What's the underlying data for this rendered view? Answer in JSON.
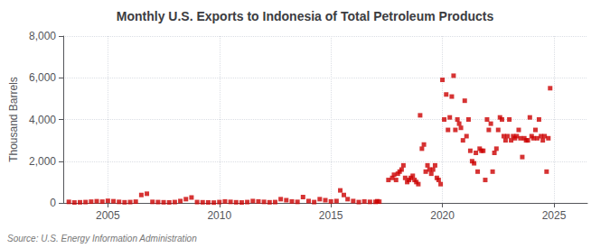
{
  "chart_data": {
    "type": "scatter",
    "title": "Monthly U.S. Exports to Indonesia of Total Petroleum Products",
    "ylabel": "Thousand Barrels",
    "source": "Source: U.S. Energy Information Administration",
    "color": "#cc0000",
    "marker": "square",
    "grid": true,
    "xlim": [
      2003.0,
      2026.5
    ],
    "xticks": [
      2005,
      2010,
      2015,
      2020,
      2025
    ],
    "ylim": [
      0,
      8000
    ],
    "yticks": [
      0,
      {
        "value": 2000,
        "label": "2,000"
      },
      {
        "value": 4000,
        "label": "4,000"
      },
      {
        "value": 6000,
        "label": "6,000"
      },
      {
        "value": 8000,
        "label": "8,000"
      }
    ],
    "x": [
      2003.25,
      2003.5,
      2003.75,
      2004.0,
      2004.25,
      2004.5,
      2004.75,
      2005.0,
      2005.25,
      2005.5,
      2005.75,
      2006.0,
      2006.25,
      2006.5,
      2006.75,
      2007.0,
      2007.25,
      2007.5,
      2007.75,
      2008.0,
      2008.25,
      2008.5,
      2008.75,
      2009.0,
      2009.25,
      2009.5,
      2009.75,
      2010.0,
      2010.25,
      2010.5,
      2010.75,
      2011.0,
      2011.25,
      2011.5,
      2011.75,
      2012.0,
      2012.25,
      2012.5,
      2012.75,
      2013.0,
      2013.25,
      2013.5,
      2013.75,
      2014.0,
      2014.25,
      2014.5,
      2014.75,
      2015.0,
      2015.25,
      2015.42,
      2015.58,
      2015.75,
      2016.0,
      2016.25,
      2016.5,
      2016.75,
      2017.0,
      2017.08,
      2017.17,
      2017.58,
      2017.75,
      2017.83,
      2017.92,
      2018.0,
      2018.08,
      2018.17,
      2018.25,
      2018.33,
      2018.42,
      2018.5,
      2018.58,
      2018.67,
      2018.75,
      2018.83,
      2018.92,
      2019.0,
      2019.08,
      2019.17,
      2019.25,
      2019.33,
      2019.42,
      2019.5,
      2019.58,
      2019.67,
      2019.75,
      2019.83,
      2019.92,
      2020.0,
      2020.08,
      2020.17,
      2020.25,
      2020.33,
      2020.42,
      2020.5,
      2020.58,
      2020.67,
      2020.75,
      2020.83,
      2020.92,
      2021.0,
      2021.08,
      2021.17,
      2021.25,
      2021.33,
      2021.42,
      2021.5,
      2021.58,
      2021.67,
      2021.75,
      2021.83,
      2021.92,
      2022.0,
      2022.08,
      2022.17,
      2022.25,
      2022.33,
      2022.42,
      2022.5,
      2022.58,
      2022.67,
      2022.75,
      2022.83,
      2022.92,
      2023.0,
      2023.08,
      2023.17,
      2023.25,
      2023.33,
      2023.42,
      2023.5,
      2023.58,
      2023.67,
      2023.75,
      2023.83,
      2023.92,
      2024.0,
      2024.08,
      2024.17,
      2024.25,
      2024.33,
      2024.42,
      2024.5,
      2024.58,
      2024.67,
      2024.75,
      2024.83
    ],
    "values": [
      50,
      20,
      30,
      40,
      60,
      80,
      60,
      100,
      80,
      50,
      30,
      40,
      60,
      380,
      440,
      50,
      40,
      30,
      25,
      40,
      90,
      180,
      260,
      40,
      30,
      25,
      15,
      40,
      70,
      50,
      30,
      20,
      40,
      90,
      70,
      50,
      30,
      40,
      180,
      130,
      70,
      50,
      280,
      90,
      40,
      180,
      130,
      70,
      90,
      600,
      380,
      180,
      90,
      40,
      70,
      50,
      50,
      80,
      60,
      1100,
      1200,
      1350,
      1100,
      1400,
      1500,
      1600,
      1800,
      1200,
      1000,
      1100,
      1200,
      1300,
      1100,
      1000,
      900,
      4200,
      2600,
      2800,
      1500,
      1800,
      1600,
      1400,
      1600,
      1800,
      1200,
      1100,
      900,
      5900,
      4000,
      5200,
      3500,
      4100,
      5100,
      6100,
      3500,
      4000,
      3800,
      3600,
      3000,
      4900,
      3200,
      4000,
      2500,
      2000,
      1900,
      2400,
      1500,
      2600,
      2500,
      2500,
      1100,
      4000,
      3500,
      3800,
      1500,
      2400,
      2600,
      3500,
      4100,
      4000,
      3200,
      3000,
      3200,
      4000,
      3000,
      3200,
      3100,
      3200,
      3500,
      3100,
      2200,
      3100,
      3000,
      3000,
      4100,
      3200,
      3100,
      3500,
      3100,
      4000,
      3200,
      3000,
      3200,
      1500,
      3100,
      5500
    ]
  }
}
